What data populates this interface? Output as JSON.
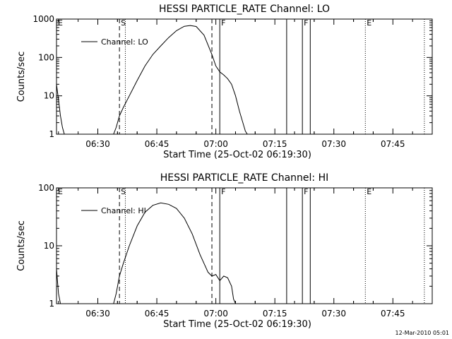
{
  "chart_data": [
    {
      "type": "line",
      "title": "HESSI PARTICLE_RATE Channel: LO",
      "xlabel": "Start Time (25-Oct-02 06:19:30)",
      "ylabel": "Counts/sec",
      "yscale": "log",
      "ylim": [
        1,
        1000
      ],
      "xlim": [
        "06:19:30",
        "07:55:00"
      ],
      "yticks": [
        {
          "value": 1,
          "label": "1"
        },
        {
          "value": 10,
          "label": "10"
        },
        {
          "value": 100,
          "label": "100"
        },
        {
          "value": 1000,
          "label": "1000"
        }
      ],
      "xticks": [
        "06:30",
        "06:45",
        "07:00",
        "07:15",
        "07:30",
        "07:45"
      ],
      "legend": {
        "position": "top-left",
        "label": "Channel: LO"
      },
      "series": [
        {
          "name": "Channel: LO",
          "points": [
            [
              "06:19:30",
              20
            ],
            [
              "06:20:00",
              8
            ],
            [
              "06:20:30",
              3
            ],
            [
              "06:21:00",
              1.5
            ],
            [
              "06:21:30",
              1
            ],
            [
              "06:34:00",
              1
            ],
            [
              "06:34:40",
              1.5
            ],
            [
              "06:35:30",
              3
            ],
            [
              "06:36:30",
              5
            ],
            [
              "06:38:00",
              10
            ],
            [
              "06:40:00",
              25
            ],
            [
              "06:42:00",
              60
            ],
            [
              "06:44:00",
              120
            ],
            [
              "06:46:00",
              200
            ],
            [
              "06:48:00",
              330
            ],
            [
              "06:50:00",
              500
            ],
            [
              "06:52:00",
              650
            ],
            [
              "06:53:30",
              680
            ],
            [
              "06:55:00",
              640
            ],
            [
              "06:57:00",
              380
            ],
            [
              "06:59:00",
              120
            ],
            [
              "07:00:00",
              60
            ],
            [
              "07:01:00",
              42
            ],
            [
              "07:02:00",
              35
            ],
            [
              "07:03:00",
              28
            ],
            [
              "07:04:00",
              20
            ],
            [
              "07:05:00",
              10
            ],
            [
              "07:06:00",
              4
            ],
            [
              "07:07:00",
              1.8
            ],
            [
              "07:07:30",
              1.2
            ],
            [
              "07:08:00",
              1
            ]
          ]
        }
      ],
      "markers": [
        {
          "type": "dashed",
          "time": "06:35:30",
          "label": "S"
        },
        {
          "type": "dotted",
          "time": "06:37:00",
          "label": ""
        },
        {
          "type": "dashed",
          "time": "06:59:00",
          "label": ""
        },
        {
          "type": "solid",
          "time": "07:01:00",
          "label": "F"
        },
        {
          "type": "solid",
          "time": "07:18:00",
          "label": ""
        },
        {
          "type": "solid",
          "time": "07:22:00",
          "label": "F"
        },
        {
          "type": "solid",
          "time": "07:24:00",
          "label": ""
        },
        {
          "type": "dotted",
          "time": "07:38:00",
          "label": "E"
        },
        {
          "type": "dotted",
          "time": "07:53:00",
          "label": ""
        }
      ],
      "edge_marker_label": "E"
    },
    {
      "type": "line",
      "title": "HESSI PARTICLE_RATE Channel: HI",
      "xlabel": "Start Time (25-Oct-02 06:19:30)",
      "ylabel": "Counts/sec",
      "yscale": "log",
      "ylim": [
        1,
        100
      ],
      "xlim": [
        "06:19:30",
        "07:55:00"
      ],
      "yticks": [
        {
          "value": 1,
          "label": "1"
        },
        {
          "value": 10,
          "label": "10"
        },
        {
          "value": 100,
          "label": "100"
        }
      ],
      "xticks": [
        "06:30",
        "06:45",
        "07:00",
        "07:15",
        "07:30",
        "07:45"
      ],
      "legend": {
        "position": "top-left",
        "label": "Channel: HI"
      },
      "series": [
        {
          "name": "Channel: HI",
          "points": [
            [
              "06:19:30",
              4
            ],
            [
              "06:20:00",
              1.5
            ],
            [
              "06:20:30",
              1
            ],
            [
              "06:34:00",
              1
            ],
            [
              "06:34:40",
              1.5
            ],
            [
              "06:35:30",
              3
            ],
            [
              "06:36:30",
              5
            ],
            [
              "06:38:00",
              10
            ],
            [
              "06:40:00",
              22
            ],
            [
              "06:42:00",
              38
            ],
            [
              "06:44:00",
              50
            ],
            [
              "06:46:00",
              55
            ],
            [
              "06:48:00",
              52
            ],
            [
              "06:50:00",
              44
            ],
            [
              "06:52:00",
              30
            ],
            [
              "06:54:00",
              16
            ],
            [
              "06:56:00",
              7
            ],
            [
              "06:58:00",
              3.5
            ],
            [
              "06:59:00",
              3
            ],
            [
              "07:00:00",
              3.2
            ],
            [
              "07:01:00",
              2.5
            ],
            [
              "07:02:00",
              3
            ],
            [
              "07:03:00",
              2.8
            ],
            [
              "07:04:00",
              2
            ],
            [
              "07:04:30",
              1.2
            ],
            [
              "07:05:00",
              1
            ]
          ]
        }
      ],
      "markers": [
        {
          "type": "dashed",
          "time": "06:35:30",
          "label": "S"
        },
        {
          "type": "dotted",
          "time": "06:37:00",
          "label": ""
        },
        {
          "type": "dashed",
          "time": "06:59:00",
          "label": ""
        },
        {
          "type": "solid",
          "time": "07:01:00",
          "label": "F"
        },
        {
          "type": "solid",
          "time": "07:18:00",
          "label": ""
        },
        {
          "type": "solid",
          "time": "07:22:00",
          "label": "F"
        },
        {
          "type": "solid",
          "time": "07:24:00",
          "label": ""
        },
        {
          "type": "dotted",
          "time": "07:38:00",
          "label": "E"
        },
        {
          "type": "dotted",
          "time": "07:53:00",
          "label": ""
        }
      ],
      "edge_marker_label": "E"
    }
  ],
  "footer": "12-Mar-2010 05:01"
}
